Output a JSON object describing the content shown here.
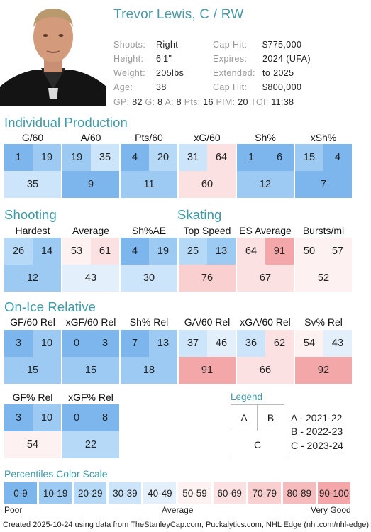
{
  "player": {
    "title": "Trevor Lewis, C / RW",
    "left_info": [
      {
        "label": "Shoots:",
        "value": "Right"
      },
      {
        "label": "Height:",
        "value": "6'1\""
      },
      {
        "label": "Weight:",
        "value": "205lbs"
      },
      {
        "label": "Age:",
        "value": "38"
      }
    ],
    "right_info": [
      {
        "label": "Cap Hit:",
        "value": "$775,000"
      },
      {
        "label": "Expires:",
        "value": "2024 (UFA)"
      },
      {
        "label": "Extended:",
        "value": "to 2025"
      },
      {
        "label": "Cap Hit:",
        "value": "$800,000"
      }
    ],
    "stats": [
      {
        "label": "GP:",
        "value": "82"
      },
      {
        "label": "G:",
        "value": "8"
      },
      {
        "label": "A:",
        "value": "8"
      },
      {
        "label": "Pts:",
        "value": "16"
      },
      {
        "label": "PIM:",
        "value": "20"
      },
      {
        "label": "TOI:",
        "value": "11:38"
      }
    ]
  },
  "sections": {
    "individual": "Individual Production",
    "shooting": "Shooting",
    "skating": "Skating",
    "onice": "On-Ice Relative"
  },
  "metrics": [
    {
      "title": "G/60",
      "a": 1,
      "b": 19,
      "c": 35
    },
    {
      "title": "A/60",
      "a": 19,
      "b": 35,
      "c": 9
    },
    {
      "title": "Pts/60",
      "a": 4,
      "b": 20,
      "c": 11
    },
    {
      "title": "xG/60",
      "a": 31,
      "b": 64,
      "c": 60
    },
    {
      "title": "Sh%",
      "a": 1,
      "b": 6,
      "c": 12
    },
    {
      "title": "xSh%",
      "a": 15,
      "b": 4,
      "c": 7
    },
    {
      "title": "Hardest",
      "a": 26,
      "b": 14,
      "c": 12
    },
    {
      "title": "Average",
      "a": 53,
      "b": 61,
      "c": 43
    },
    {
      "title": "Sh%AE",
      "a": 4,
      "b": 19,
      "c": 30
    },
    {
      "title": "Top Speed",
      "a": 25,
      "b": 13,
      "c": 76
    },
    {
      "title": "ES Average",
      "a": 64,
      "b": 91,
      "c": 67
    },
    {
      "title": "Bursts/mi",
      "a": 50,
      "b": 57,
      "c": 52
    },
    {
      "title": "GF/60 Rel",
      "a": 3,
      "b": 10,
      "c": 15
    },
    {
      "title": "xGF/60 Rel",
      "a": 0,
      "b": 3,
      "c": 15
    },
    {
      "title": "Sh% Rel",
      "a": 7,
      "b": 13,
      "c": 18
    },
    {
      "title": "GA/60 Rel",
      "a": 37,
      "b": 46,
      "c": 91
    },
    {
      "title": "xGA/60 Rel",
      "a": 36,
      "b": 62,
      "c": 66
    },
    {
      "title": "Sv% Rel",
      "a": 54,
      "b": 43,
      "c": 92
    },
    {
      "title": "GF% Rel",
      "a": 3,
      "b": 10,
      "c": 54
    },
    {
      "title": "xGF% Rel",
      "a": 0,
      "b": 8,
      "c": 22
    }
  ],
  "legend": {
    "title": "Legend",
    "keys": [
      "A",
      "B",
      "C"
    ],
    "entries": [
      "A - 2021-22",
      "B - 2022-23",
      "C - 2023-24"
    ]
  },
  "scale": {
    "title": "Percentiles Color Scale",
    "bins": [
      "0-9",
      "10-19",
      "20-29",
      "30-39",
      "40-49",
      "50-59",
      "60-69",
      "70-79",
      "80-89",
      "90-100"
    ],
    "colors": [
      "#7db6ec",
      "#9ccaf3",
      "#b6d9f7",
      "#cde5fa",
      "#e3f0fc",
      "#fdf1f1",
      "#fbe1e2",
      "#f9cfd0",
      "#f6bcbd",
      "#f4a7a9"
    ],
    "poor": "Poor",
    "average": "Average",
    "very_good": "Very Good"
  },
  "footer": "Created 2025-10-24 using data from TheStanleyCap.com, Puckalytics.com, NHL Edge (nhl.com/nhl-edge)."
}
